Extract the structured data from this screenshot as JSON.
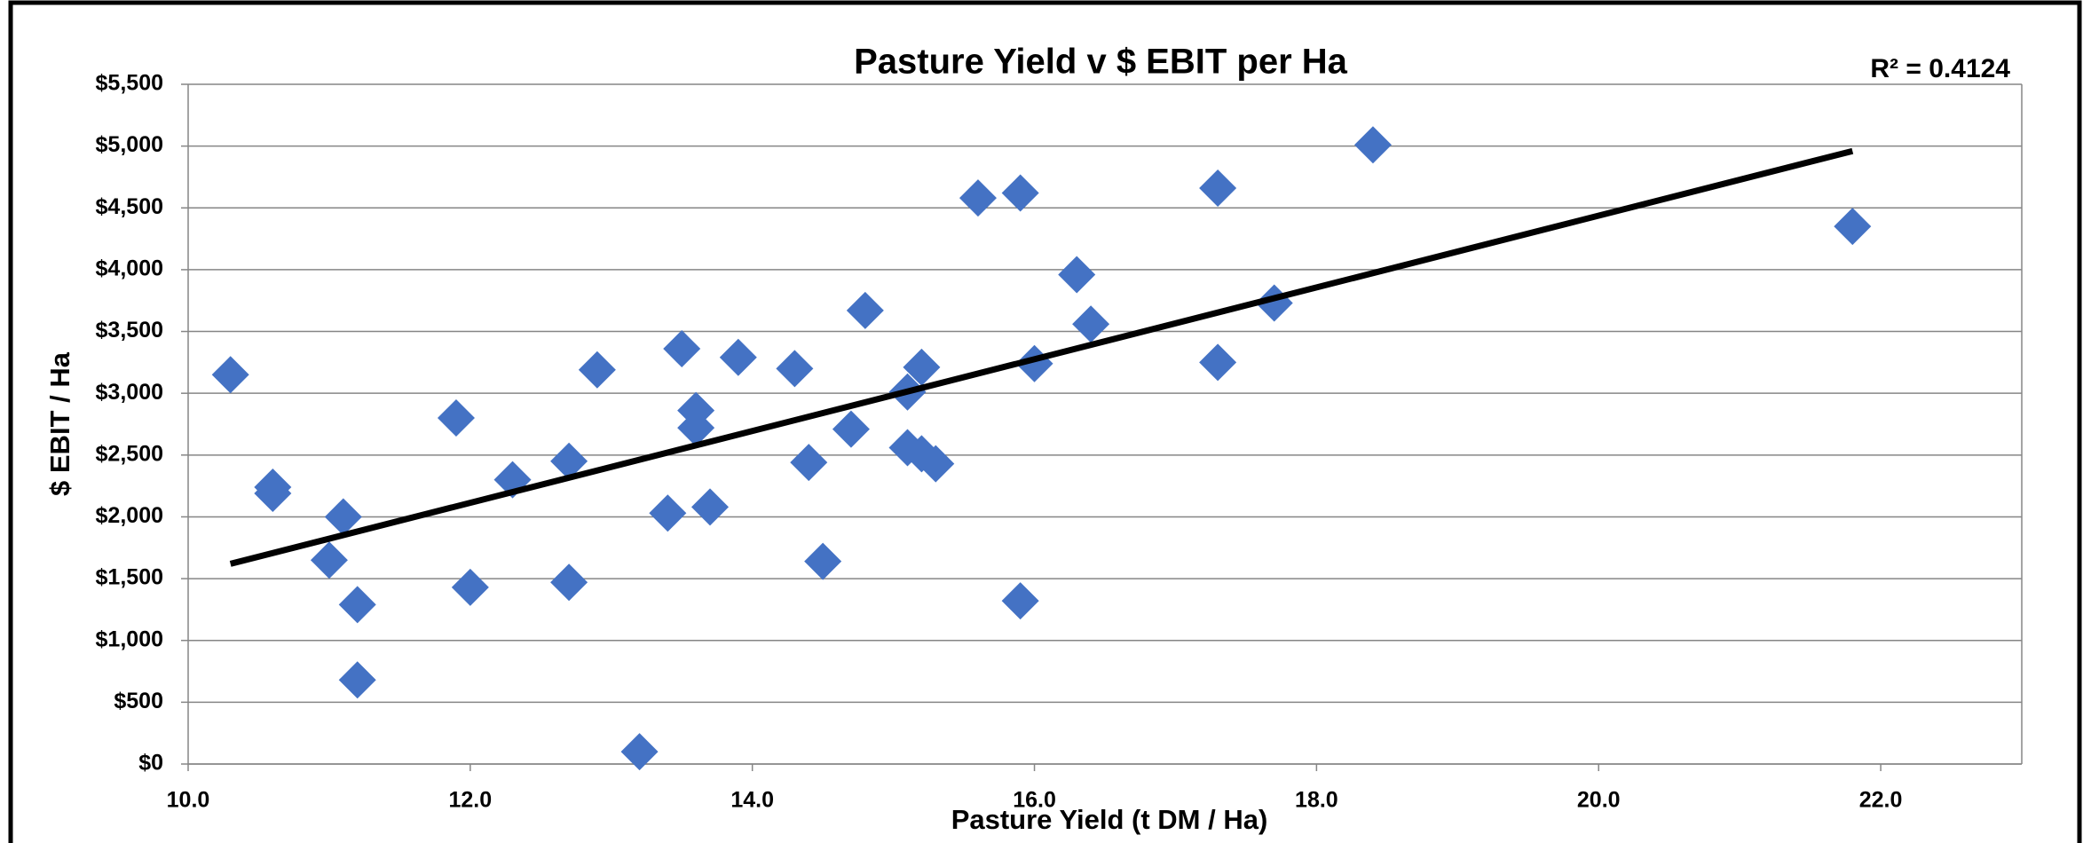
{
  "chart_data": {
    "type": "scatter",
    "title": "Pasture Yield v $ EBIT per Ha",
    "annotation": "R² = 0.4124",
    "x_label": "Pasture Yield (t DM / Ha)",
    "y_label": "$ EBIT / Ha",
    "xlim": [
      10,
      23
    ],
    "xticks": [
      {
        "value": 10,
        "label": "10.0"
      },
      {
        "value": 12,
        "label": "12.0"
      },
      {
        "value": 14,
        "label": "14.0"
      },
      {
        "value": 16,
        "label": "16.0"
      },
      {
        "value": 18,
        "label": "18.0"
      },
      {
        "value": 20,
        "label": "20.0"
      },
      {
        "value": 22,
        "label": "22.0"
      }
    ],
    "ylim": [
      0,
      5500
    ],
    "yticks": [
      {
        "value": 0,
        "label": "$0"
      },
      {
        "value": 500,
        "label": "$500"
      },
      {
        "value": 1000,
        "label": "$1,000"
      },
      {
        "value": 1500,
        "label": "$1,500"
      },
      {
        "value": 2000,
        "label": "$2,000"
      },
      {
        "value": 2500,
        "label": "$2,500"
      },
      {
        "value": 3000,
        "label": "$3,000"
      },
      {
        "value": 3500,
        "label": "$3,500"
      },
      {
        "value": 4000,
        "label": "$4,000"
      },
      {
        "value": 4500,
        "label": "$4,500"
      },
      {
        "value": 5000,
        "label": "$5,000"
      },
      {
        "value": 5500,
        "label": "$5,500"
      }
    ],
    "grid": true,
    "color": "#4472c4",
    "trend_color": "#000000",
    "x": [
      10.3,
      10.6,
      10.6,
      11.1,
      11.0,
      11.2,
      11.2,
      11.9,
      12.0,
      12.3,
      12.7,
      12.7,
      12.9,
      13.2,
      13.4,
      13.5,
      13.6,
      13.6,
      13.7,
      13.9,
      14.3,
      14.4,
      14.5,
      14.7,
      14.8,
      15.1,
      15.1,
      15.2,
      15.2,
      15.3,
      15.6,
      15.9,
      15.9,
      16.0,
      16.3,
      16.4,
      17.3,
      17.3,
      17.7,
      18.4,
      21.8
    ],
    "values": [
      3150,
      2240,
      2190,
      2000,
      1650,
      1290,
      680,
      2800,
      1430,
      2300,
      2450,
      1470,
      3190,
      100,
      2030,
      3360,
      2860,
      2720,
      2080,
      3290,
      3200,
      2440,
      1640,
      2710,
      3670,
      3010,
      2560,
      3210,
      2510,
      2430,
      4580,
      4620,
      1320,
      3240,
      3960,
      3560,
      4660,
      3250,
      3730,
      5010,
      4350
    ],
    "trendline": {
      "x": [
        10.3,
        21.8
      ],
      "values": [
        1620,
        4960
      ]
    }
  }
}
